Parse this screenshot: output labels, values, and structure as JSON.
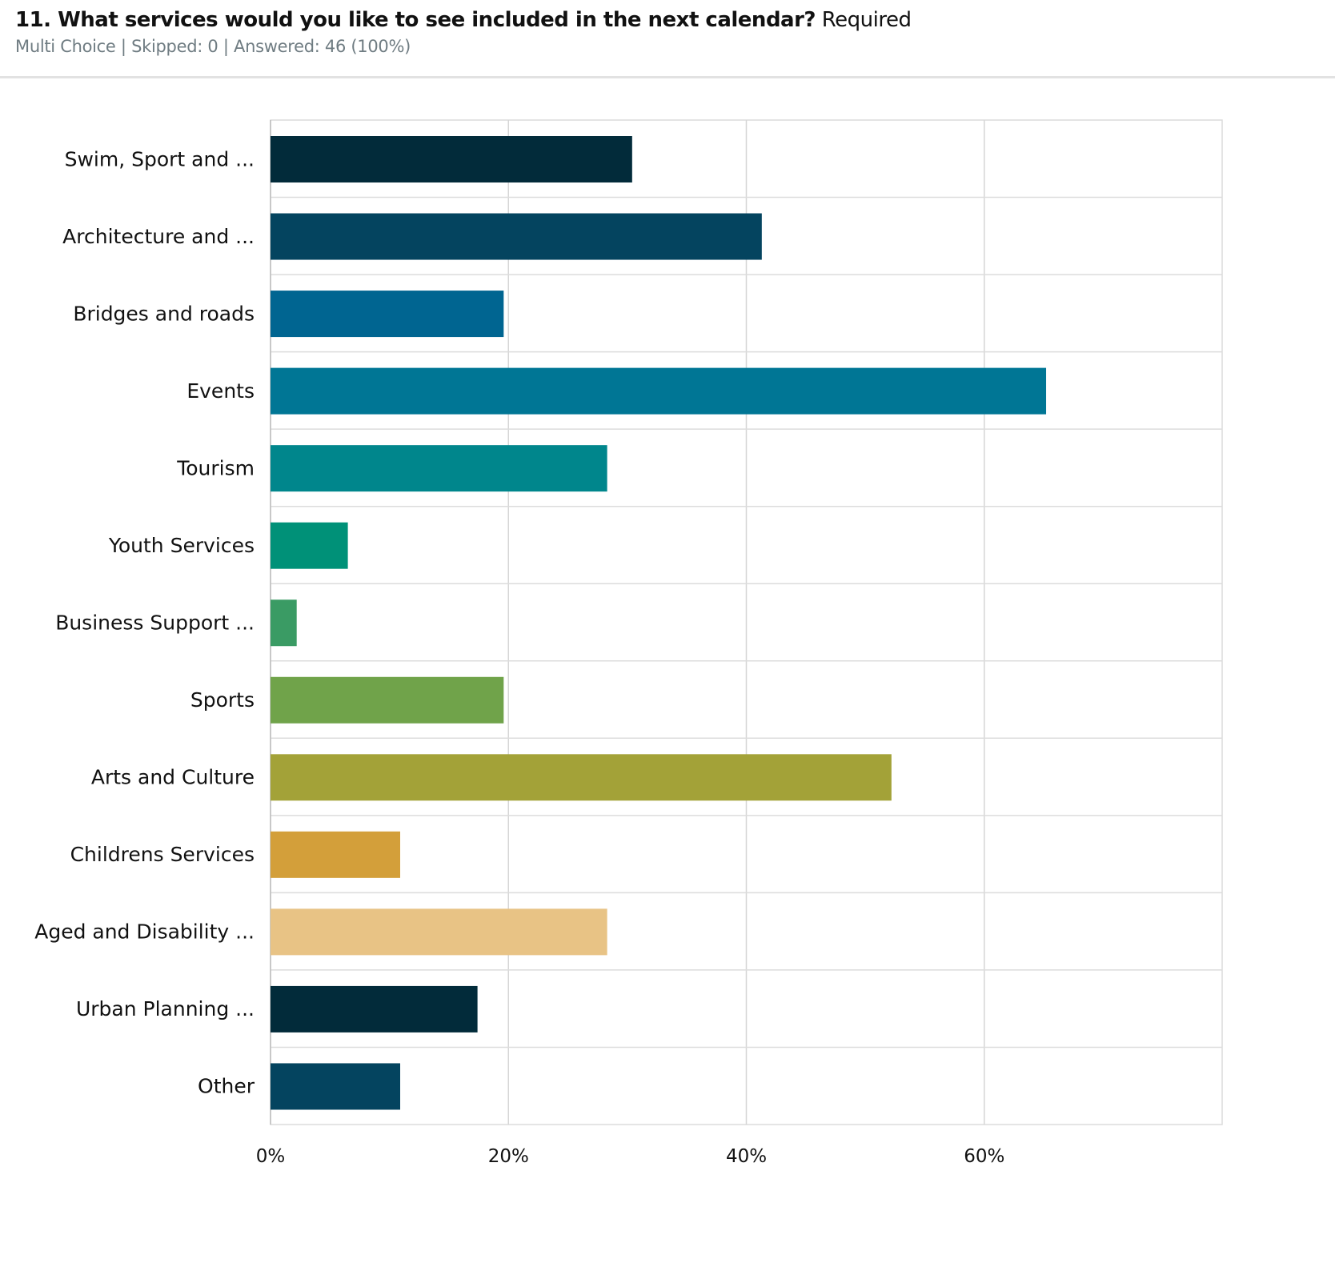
{
  "header": {
    "question": "11. What services would you like to see included in the next calendar?",
    "required": "Required",
    "type": "Multi Choice",
    "skipped": "Skipped: 0",
    "answered": "Answered: 46 (100%)",
    "separator": "|"
  },
  "chart_data": {
    "type": "bar",
    "orientation": "horizontal",
    "categories": [
      "Swim, Sport and ...",
      "Architecture and ...",
      "Bridges and roads",
      "Events",
      "Tourism",
      "Youth Services",
      "Business Support ...",
      "Sports",
      "Arts and Culture",
      "Childrens Services",
      "Aged and Disability ...",
      "Urban Planning ...",
      "Other"
    ],
    "values": [
      30.4,
      41.3,
      19.6,
      65.2,
      28.3,
      6.5,
      2.2,
      19.6,
      52.2,
      10.9,
      28.3,
      17.4,
      10.9
    ],
    "colors": [
      "#022b3a",
      "#04445f",
      "#006591",
      "#007695",
      "#00868c",
      "#009178",
      "#3a9b64",
      "#70a34a",
      "#a3a238",
      "#d39f3a",
      "#e8c385",
      "#022b3a",
      "#04445f"
    ],
    "xlim": [
      0,
      80
    ],
    "xticks": [
      0,
      20,
      40,
      60
    ],
    "xtick_labels": [
      "0%",
      "20%",
      "40%",
      "60%"
    ],
    "grid": true,
    "xlabel": "",
    "ylabel": ""
  }
}
